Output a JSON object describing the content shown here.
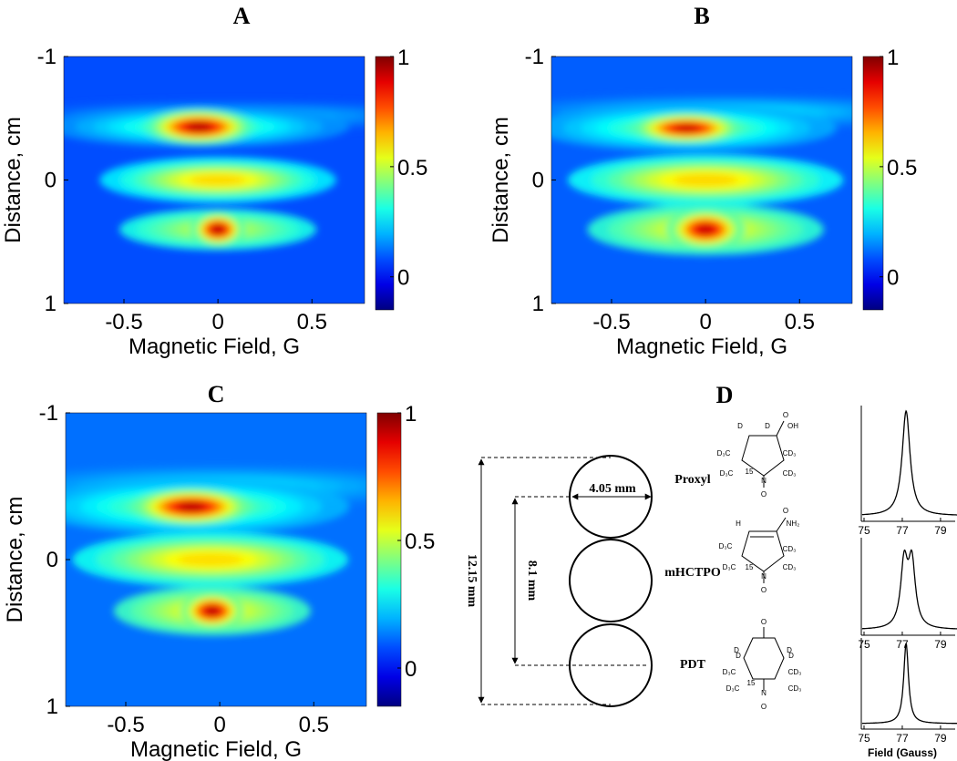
{
  "chart_data": [
    {
      "type": "heatmap",
      "title": "A",
      "xlabel": "Magnetic Field, G",
      "ylabel": "Distance, cm",
      "xlim": [
        -0.82,
        0.78
      ],
      "ylim": [
        -1,
        1
      ],
      "y_reversed": true,
      "xticks": [
        -0.5,
        0,
        0.5
      ],
      "yticks": [
        -1,
        0,
        1
      ],
      "clim": [
        -0.15,
        1
      ],
      "cticks": [
        0,
        0.5,
        1
      ],
      "background": 0.08,
      "peaks": [
        {
          "x": 0.1,
          "y": -0.52,
          "value": 0.15,
          "sx": 0.6,
          "sy": 0.06
        },
        {
          "x": -0.1,
          "y": -0.43,
          "value": 0.3,
          "sx": 0.38,
          "sy": 0.08
        },
        {
          "x": 0.0,
          "y": 0.0,
          "value": 0.45,
          "sx": 0.3,
          "sy": 0.09
        },
        {
          "x": 0.0,
          "y": 0.4,
          "value": 0.25,
          "sx": 0.25,
          "sy": 0.08
        },
        {
          "x": -0.1,
          "y": -0.43,
          "value": 0.75,
          "sx": 0.14,
          "sy": 0.07
        },
        {
          "x": 0.0,
          "y": 0.4,
          "value": 0.75,
          "sx": 0.07,
          "sy": 0.07
        }
      ]
    },
    {
      "type": "heatmap",
      "title": "B",
      "xlabel": "Magnetic Field, G",
      "ylabel": "Distance, cm",
      "xlim": [
        -0.82,
        0.78
      ],
      "ylim": [
        -1,
        1
      ],
      "y_reversed": true,
      "xticks": [
        -0.5,
        0,
        0.5
      ],
      "yticks": [
        -1,
        0,
        1
      ],
      "clim": [
        -0.15,
        1
      ],
      "cticks": [
        0,
        0.5,
        1
      ],
      "background": 0.1,
      "peaks": [
        {
          "x": 0.1,
          "y": -0.55,
          "value": 0.18,
          "sx": 0.6,
          "sy": 0.07
        },
        {
          "x": -0.1,
          "y": -0.42,
          "value": 0.3,
          "sx": 0.38,
          "sy": 0.09
        },
        {
          "x": 0.0,
          "y": 0.0,
          "value": 0.42,
          "sx": 0.35,
          "sy": 0.1
        },
        {
          "x": 0.0,
          "y": 0.4,
          "value": 0.3,
          "sx": 0.3,
          "sy": 0.1
        },
        {
          "x": -0.1,
          "y": -0.42,
          "value": 0.7,
          "sx": 0.14,
          "sy": 0.06
        },
        {
          "x": 0.0,
          "y": 0.4,
          "value": 0.7,
          "sx": 0.1,
          "sy": 0.08
        }
      ]
    },
    {
      "type": "heatmap",
      "title": "C",
      "xlabel": "Magnetic Field, G",
      "ylabel": "Distance, cm",
      "xlim": [
        -0.82,
        0.78
      ],
      "ylim": [
        -1,
        1
      ],
      "y_reversed": true,
      "xticks": [
        -0.5,
        0,
        0.5
      ],
      "yticks": [
        -1,
        0,
        1
      ],
      "clim": [
        -0.15,
        1
      ],
      "cticks": [
        0,
        0.5,
        1
      ],
      "background": 0.12,
      "peaks": [
        {
          "x": 0.0,
          "y": -0.5,
          "value": 0.15,
          "sx": 0.6,
          "sy": 0.07
        },
        {
          "x": -0.15,
          "y": -0.36,
          "value": 0.3,
          "sx": 0.4,
          "sy": 0.09
        },
        {
          "x": -0.05,
          "y": 0.0,
          "value": 0.4,
          "sx": 0.35,
          "sy": 0.09
        },
        {
          "x": -0.04,
          "y": 0.35,
          "value": 0.28,
          "sx": 0.25,
          "sy": 0.08
        },
        {
          "x": -0.15,
          "y": -0.36,
          "value": 0.7,
          "sx": 0.15,
          "sy": 0.06
        },
        {
          "x": -0.04,
          "y": 0.35,
          "value": 0.7,
          "sx": 0.08,
          "sy": 0.06
        }
      ]
    }
  ],
  "diagram": {
    "title": "D",
    "diameter": "4.05 mm",
    "spacing": "8.1 mm",
    "total": "12.15 mm",
    "field_label": "Field (Gauss)",
    "spectrum_xlim": [
      74.9,
      80
    ],
    "spectrum_xticks": [
      75,
      77,
      79
    ],
    "molecules": [
      {
        "name": "Proxyl",
        "atoms": [
          "D",
          "D",
          "O",
          "OH",
          "D₃C",
          "CD₃",
          "D₃C",
          "CD₃",
          "15",
          "N",
          "O"
        ],
        "peaks": [
          77.2
        ],
        "width": 0.25
      },
      {
        "name": "mHCTPO",
        "atoms": [
          "H",
          "O",
          "NH₂",
          "D₃C",
          "CD₃",
          "D₃C",
          "CD₃",
          "15",
          "N",
          "O"
        ],
        "peaks": [
          77.1,
          77.5
        ],
        "width": 0.22
      },
      {
        "name": "PDT",
        "atoms": [
          "O",
          "D",
          "D",
          "D",
          "D",
          "D₃C",
          "CD₃",
          "D₃C",
          "CD₃",
          "15",
          "N",
          "O"
        ],
        "peaks": [
          77.2
        ],
        "width": 0.15
      }
    ]
  }
}
